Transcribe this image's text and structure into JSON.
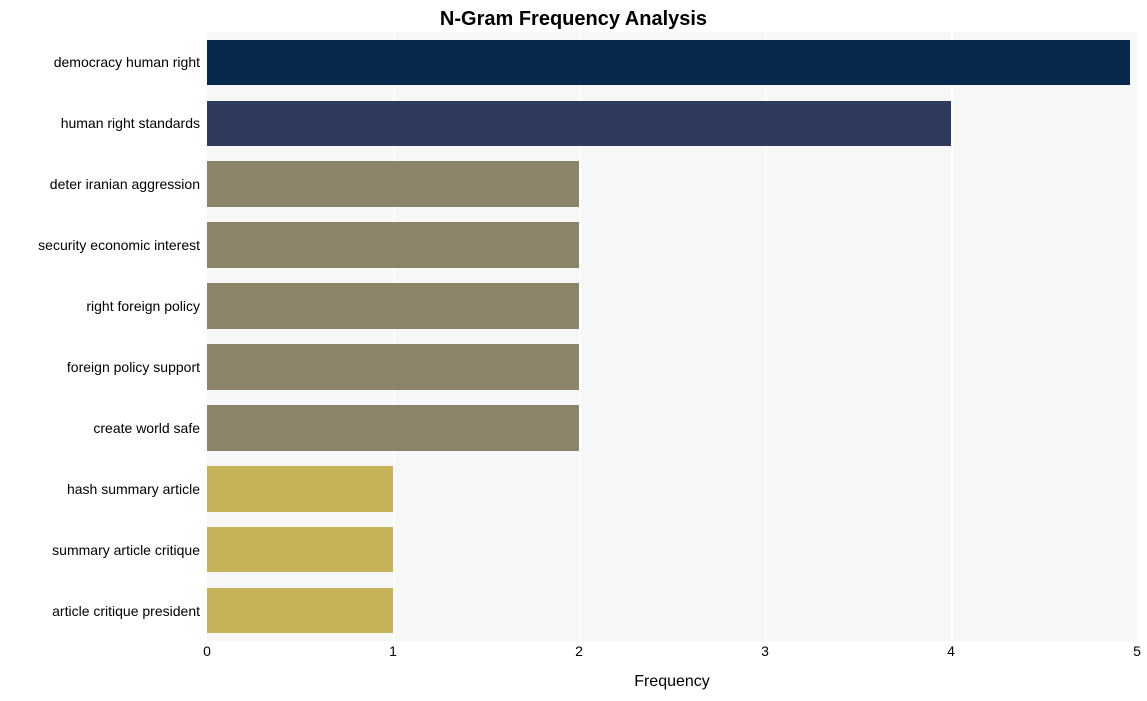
{
  "chart": {
    "type": "bar-horizontal",
    "title": "N-Gram Frequency Analysis",
    "title_fontsize": 20,
    "title_fontweight": 700,
    "xlabel": "Frequency",
    "xlabel_fontsize": 16,
    "xlim": [
      0,
      5
    ],
    "xtick_values": [
      0,
      1,
      2,
      3,
      4,
      5
    ],
    "xtick_fontsize": 14,
    "ylabel_fontsize": 14,
    "background_color": "#ffffff",
    "plot_background_color": "#f7f7f7",
    "grid_color": "#ffffff",
    "grid_line_width": 2,
    "bar_fill_ratio": 0.75,
    "plot_width_ratio_cap": 0.992,
    "bars": [
      {
        "label": "democracy human right",
        "value": 5,
        "color": "#07294d"
      },
      {
        "label": "human right standards",
        "value": 4,
        "color": "#2f3b5c"
      },
      {
        "label": "deter iranian aggression",
        "value": 2,
        "color": "#8b8468"
      },
      {
        "label": "security economic interest",
        "value": 2,
        "color": "#8b8468"
      },
      {
        "label": "right foreign policy",
        "value": 2,
        "color": "#8b8468"
      },
      {
        "label": "foreign policy support",
        "value": 2,
        "color": "#8b8468"
      },
      {
        "label": "create world safe",
        "value": 2,
        "color": "#8b8468"
      },
      {
        "label": "hash summary article",
        "value": 1,
        "color": "#c6b258"
      },
      {
        "label": "summary article critique",
        "value": 1,
        "color": "#c6b258"
      },
      {
        "label": "article critique president",
        "value": 1,
        "color": "#c6b258"
      }
    ]
  }
}
